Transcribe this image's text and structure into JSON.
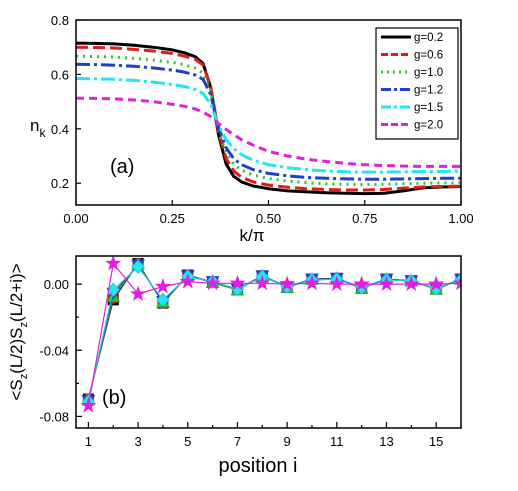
{
  "chart_data": [
    {
      "type": "line",
      "panel_label": "(a)",
      "xlabel": "k/π",
      "ylabel_main": "n",
      "ylabel_sub": "k",
      "xlim": [
        0,
        1
      ],
      "ylim": [
        0.12,
        0.8
      ],
      "xticks": [
        0,
        0.25,
        0.5,
        0.75,
        1.0
      ],
      "xtick_labels": [
        "0.00",
        "0.25",
        "0.50",
        "0.75",
        "1.00"
      ],
      "yticks": [
        0.2,
        0.4,
        0.6,
        0.8
      ],
      "ytick_labels": [
        "0.2",
        "0.4",
        "0.6",
        "0.8"
      ],
      "legend_position": "top-right",
      "x": [
        0,
        0.05,
        0.1,
        0.15,
        0.2,
        0.25,
        0.28,
        0.31,
        0.33,
        0.35,
        0.37,
        0.39,
        0.41,
        0.43,
        0.46,
        0.5,
        0.55,
        0.6,
        0.65,
        0.7,
        0.75,
        0.8,
        0.85,
        0.9,
        0.95,
        1.0
      ],
      "series": [
        {
          "name": "g=0.2",
          "color": "#000000",
          "dash": "solid",
          "width": 3,
          "values": [
            0.715,
            0.714,
            0.712,
            0.707,
            0.7,
            0.69,
            0.68,
            0.665,
            0.64,
            0.55,
            0.38,
            0.27,
            0.225,
            0.205,
            0.19,
            0.18,
            0.172,
            0.168,
            0.165,
            0.163,
            0.162,
            0.163,
            0.172,
            0.183,
            0.186,
            0.188
          ]
        },
        {
          "name": "g=0.6",
          "color": "#e31a1c",
          "dash": "12,5",
          "width": 3,
          "values": [
            0.7,
            0.699,
            0.697,
            0.692,
            0.686,
            0.677,
            0.668,
            0.655,
            0.635,
            0.555,
            0.39,
            0.29,
            0.245,
            0.222,
            0.205,
            0.193,
            0.185,
            0.18,
            0.177,
            0.175,
            0.175,
            0.177,
            0.182,
            0.186,
            0.188,
            0.189
          ]
        },
        {
          "name": "g=1.0",
          "color": "#22cc22",
          "dash": "2,5",
          "width": 3,
          "values": [
            0.667,
            0.666,
            0.664,
            0.659,
            0.653,
            0.644,
            0.636,
            0.623,
            0.605,
            0.54,
            0.395,
            0.31,
            0.27,
            0.248,
            0.23,
            0.217,
            0.208,
            0.202,
            0.198,
            0.196,
            0.195,
            0.196,
            0.198,
            0.2,
            0.201,
            0.202
          ]
        },
        {
          "name": "g=1.2",
          "color": "#1f3fcc",
          "dash": "14,4,3,4",
          "width": 3,
          "values": [
            0.637,
            0.636,
            0.634,
            0.63,
            0.624,
            0.616,
            0.609,
            0.598,
            0.582,
            0.525,
            0.405,
            0.33,
            0.29,
            0.268,
            0.25,
            0.236,
            0.227,
            0.221,
            0.218,
            0.216,
            0.215,
            0.215,
            0.216,
            0.217,
            0.218,
            0.218
          ]
        },
        {
          "name": "g=1.5",
          "color": "#22e6f0",
          "dash": "14,4,3,4",
          "width": 3,
          "values": [
            0.585,
            0.584,
            0.582,
            0.578,
            0.572,
            0.563,
            0.556,
            0.545,
            0.53,
            0.49,
            0.415,
            0.36,
            0.327,
            0.305,
            0.285,
            0.268,
            0.257,
            0.25,
            0.245,
            0.242,
            0.241,
            0.241,
            0.242,
            0.243,
            0.243,
            0.244
          ]
        },
        {
          "name": "g=2.0",
          "color": "#e020e0",
          "dash": "8,5",
          "width": 3,
          "values": [
            0.513,
            0.512,
            0.51,
            0.506,
            0.5,
            0.49,
            0.483,
            0.473,
            0.462,
            0.445,
            0.42,
            0.398,
            0.378,
            0.36,
            0.34,
            0.317,
            0.3,
            0.288,
            0.28,
            0.273,
            0.268,
            0.265,
            0.263,
            0.262,
            0.262,
            0.262
          ]
        }
      ]
    },
    {
      "type": "line",
      "panel_label": "(b)",
      "xlabel": "position i",
      "ylabel": "<S_z(L/2)S_z(L/2+i)>",
      "ylabel_parts": [
        "<S",
        "z",
        "(L/2)S",
        "z",
        "(L/2+i)>"
      ],
      "xlim": [
        0.5,
        16
      ],
      "ylim": [
        -0.087,
        0.017
      ],
      "xticks": [
        1,
        3,
        5,
        7,
        9,
        11,
        13,
        15
      ],
      "xtick_labels": [
        "1",
        "3",
        "5",
        "7",
        "9",
        "11",
        "13",
        "15"
      ],
      "yticks": [
        0.0,
        -0.04,
        -0.08
      ],
      "ytick_labels": [
        "0.00",
        "-0.04",
        "-0.08"
      ],
      "x": [
        1,
        2,
        3,
        4,
        5,
        6,
        7,
        8,
        9,
        10,
        11,
        12,
        13,
        14,
        15,
        16
      ],
      "series": [
        {
          "marker": "square",
          "color": "#000000",
          "fill": "#000000",
          "values": [
            -0.0695,
            -0.0095,
            0.0125,
            -0.0115,
            0.0055,
            0.001,
            -0.0035,
            0.005,
            -0.002,
            0.003,
            0.0035,
            -0.0025,
            0.003,
            0.002,
            -0.003,
            0.003
          ]
        },
        {
          "marker": "circle",
          "color": "#e31a1c",
          "fill": "#e31a1c",
          "values": [
            -0.0695,
            -0.0085,
            0.0125,
            -0.0115,
            0.0055,
            0.001,
            -0.0035,
            0.005,
            -0.002,
            0.003,
            0.0035,
            -0.0025,
            0.003,
            0.002,
            -0.003,
            0.003
          ]
        },
        {
          "marker": "triangle",
          "color": "#22aa22",
          "fill": "#22cc22",
          "values": [
            -0.07,
            -0.0075,
            0.012,
            -0.011,
            0.005,
            0.001,
            -0.0035,
            0.005,
            -0.002,
            0.003,
            0.0035,
            -0.0025,
            0.003,
            0.002,
            -0.003,
            0.003
          ]
        },
        {
          "marker": "triangle-down",
          "color": "#1f3fcc",
          "fill": "#1f3fcc",
          "values": [
            -0.0705,
            -0.0055,
            0.0115,
            -0.0105,
            0.005,
            0.0015,
            -0.003,
            0.005,
            -0.0015,
            0.003,
            0.0035,
            -0.002,
            0.003,
            0.002,
            -0.0025,
            0.003
          ]
        },
        {
          "marker": "diamond",
          "color": "#1fc8e0",
          "fill": "#22e6f0",
          "values": [
            -0.071,
            -0.0035,
            0.0105,
            -0.0095,
            0.0045,
            0.0015,
            -0.003,
            0.0045,
            -0.0015,
            0.0025,
            0.003,
            -0.002,
            0.0025,
            0.002,
            -0.0025,
            0.0025
          ]
        },
        {
          "marker": "star",
          "color": "#e020e0",
          "fill": "#e020e0",
          "values": [
            -0.0735,
            0.0125,
            -0.006,
            -0.0015,
            0.0015,
            0.0005,
            0.0005,
            0.0005,
            0.0,
            0.0005,
            0.0,
            0.0,
            0.0,
            0.0,
            0.0,
            0.0005
          ]
        }
      ]
    }
  ]
}
